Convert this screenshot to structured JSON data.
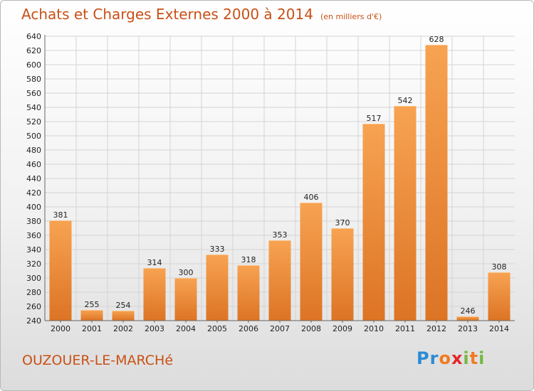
{
  "header": {
    "title": "Achats et Charges Externes 2000 à 2014",
    "unit": "(en milliers d'€)"
  },
  "footer": {
    "city": "OUZOUER-LE-MARCHé",
    "logo": [
      "P",
      "r",
      "o",
      "x",
      "i",
      "t",
      "i"
    ]
  },
  "colors": {
    "bar_light": "#f7a352",
    "bar_dark": "#dc7424",
    "title": "#c85016",
    "grid": "#d4d4d4",
    "logo": [
      "#2a8bd6",
      "#2a8bd6",
      "#f07b1f",
      "#e3262b",
      "#75b843",
      "#f07b1f",
      "#75b843"
    ]
  },
  "chart_data": {
    "type": "bar",
    "title": "Achats et Charges Externes 2000 à 2014",
    "subtitle": "(en milliers d'€)",
    "categories": [
      "2000",
      "2001",
      "2002",
      "2003",
      "2004",
      "2005",
      "2006",
      "2007",
      "2008",
      "2009",
      "2010",
      "2011",
      "2012",
      "2013",
      "2014"
    ],
    "values": [
      381,
      255,
      254,
      314,
      300,
      333,
      318,
      353,
      406,
      370,
      517,
      542,
      628,
      246,
      308
    ],
    "ylim": [
      240,
      640
    ],
    "yticks": [
      240,
      260,
      280,
      300,
      320,
      340,
      360,
      380,
      400,
      420,
      440,
      460,
      480,
      500,
      520,
      540,
      560,
      580,
      600,
      620,
      640
    ],
    "grid": true,
    "xlabel": "",
    "ylabel": ""
  }
}
